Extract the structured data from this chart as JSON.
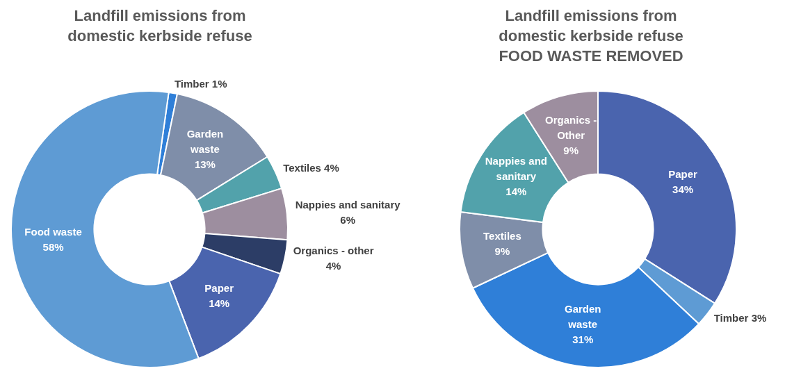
{
  "chart_data": [
    {
      "type": "donut",
      "title": "Landfill emissions from domestic kerbside refuse",
      "categories": [
        "Timber",
        "Garden waste",
        "Textiles",
        "Nappies and sanitary",
        "Organics - other",
        "Paper",
        "Food waste"
      ],
      "values": [
        1,
        13,
        4,
        6,
        4,
        14,
        58
      ],
      "value_labels": [
        "1%",
        "13%",
        "4%",
        "6%",
        "4%",
        "14%",
        "58%"
      ],
      "colors": [
        "#2f7fd8",
        "#7f8ea9",
        "#52a2ab",
        "#9d8e9f",
        "#2c3d66",
        "#4a64ae",
        "#5e9bd4"
      ],
      "legend": false
    },
    {
      "type": "donut",
      "title": "Landfill emissions from domestic kerbside refuse",
      "subtitle": "FOOD WASTE REMOVED",
      "categories": [
        "Paper",
        "Timber",
        "Garden waste",
        "Textiles",
        "Nappies and sanitary",
        "Organics - Other"
      ],
      "values": [
        34,
        3,
        31,
        9,
        14,
        9
      ],
      "value_labels": [
        "34%",
        "3%",
        "31%",
        "9%",
        "14%",
        "9%"
      ],
      "colors": [
        "#4a64ae",
        "#5e9bd4",
        "#2f7fd8",
        "#7f8ea9",
        "#52a2ab",
        "#9d8e9f"
      ],
      "legend": false
    }
  ]
}
